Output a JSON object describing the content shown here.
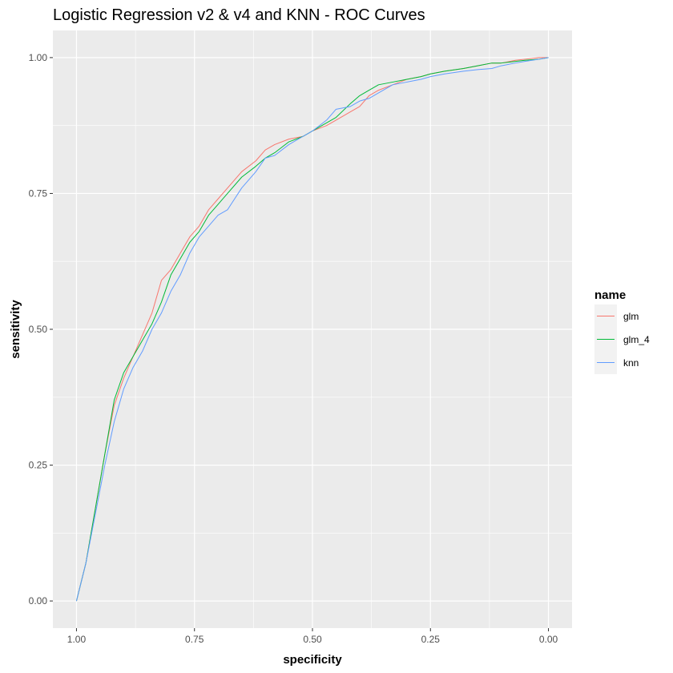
{
  "chart_data": {
    "type": "line",
    "title": "Logistic Regression v2 & v4 and KNN - ROC Curves",
    "xlabel": "specificity",
    "ylabel": "sensitivity",
    "x_reversed": true,
    "xlim": [
      1.05,
      -0.05
    ],
    "ylim": [
      -0.05,
      1.05
    ],
    "x_ticks": [
      1.0,
      0.75,
      0.5,
      0.25,
      0.0
    ],
    "x_tick_labels": [
      "1.00",
      "0.75",
      "0.50",
      "0.25",
      "0.00"
    ],
    "y_ticks": [
      0.0,
      0.25,
      0.5,
      0.75,
      1.0
    ],
    "y_tick_labels": [
      "0.00",
      "0.25",
      "0.50",
      "0.75",
      "1.00"
    ],
    "grid": true,
    "legend": {
      "title": "name",
      "position": "right"
    },
    "series": [
      {
        "name": "glm",
        "color": "#F8766D",
        "x": [
          1.0,
          0.98,
          0.96,
          0.94,
          0.92,
          0.9,
          0.88,
          0.86,
          0.84,
          0.82,
          0.8,
          0.78,
          0.76,
          0.74,
          0.72,
          0.7,
          0.68,
          0.65,
          0.62,
          0.6,
          0.58,
          0.55,
          0.52,
          0.5,
          0.47,
          0.45,
          0.42,
          0.4,
          0.38,
          0.36,
          0.33,
          0.3,
          0.27,
          0.25,
          0.22,
          0.18,
          0.15,
          0.12,
          0.1,
          0.07,
          0.05,
          0.02,
          0.0
        ],
        "y": [
          0.0,
          0.07,
          0.17,
          0.27,
          0.36,
          0.41,
          0.45,
          0.49,
          0.53,
          0.59,
          0.61,
          0.64,
          0.67,
          0.69,
          0.72,
          0.74,
          0.76,
          0.79,
          0.81,
          0.83,
          0.84,
          0.85,
          0.855,
          0.865,
          0.875,
          0.885,
          0.9,
          0.91,
          0.93,
          0.94,
          0.95,
          0.96,
          0.965,
          0.97,
          0.975,
          0.98,
          0.985,
          0.99,
          0.99,
          0.995,
          0.997,
          1.0,
          1.0
        ]
      },
      {
        "name": "glm_4",
        "color": "#00BA38",
        "x": [
          1.0,
          0.98,
          0.96,
          0.94,
          0.92,
          0.9,
          0.88,
          0.86,
          0.84,
          0.82,
          0.8,
          0.78,
          0.76,
          0.74,
          0.72,
          0.7,
          0.68,
          0.65,
          0.62,
          0.6,
          0.58,
          0.55,
          0.52,
          0.5,
          0.47,
          0.45,
          0.42,
          0.4,
          0.38,
          0.36,
          0.33,
          0.3,
          0.27,
          0.25,
          0.22,
          0.18,
          0.15,
          0.12,
          0.1,
          0.07,
          0.05,
          0.02,
          0.0
        ],
        "y": [
          0.0,
          0.07,
          0.17,
          0.27,
          0.37,
          0.42,
          0.45,
          0.48,
          0.51,
          0.55,
          0.6,
          0.63,
          0.66,
          0.68,
          0.71,
          0.73,
          0.75,
          0.78,
          0.8,
          0.815,
          0.825,
          0.845,
          0.855,
          0.865,
          0.88,
          0.89,
          0.915,
          0.93,
          0.94,
          0.95,
          0.955,
          0.96,
          0.965,
          0.97,
          0.975,
          0.98,
          0.985,
          0.99,
          0.99,
          0.993,
          0.995,
          0.997,
          1.0
        ]
      },
      {
        "name": "knn",
        "color": "#619CFF",
        "x": [
          1.0,
          0.98,
          0.96,
          0.94,
          0.92,
          0.9,
          0.88,
          0.86,
          0.84,
          0.82,
          0.8,
          0.78,
          0.76,
          0.74,
          0.72,
          0.7,
          0.68,
          0.65,
          0.62,
          0.6,
          0.58,
          0.55,
          0.52,
          0.5,
          0.47,
          0.45,
          0.42,
          0.4,
          0.38,
          0.36,
          0.33,
          0.3,
          0.27,
          0.25,
          0.22,
          0.18,
          0.15,
          0.12,
          0.1,
          0.07,
          0.05,
          0.02,
          0.0
        ],
        "y": [
          0.0,
          0.07,
          0.16,
          0.25,
          0.33,
          0.39,
          0.43,
          0.46,
          0.5,
          0.53,
          0.57,
          0.6,
          0.64,
          0.67,
          0.69,
          0.71,
          0.72,
          0.76,
          0.79,
          0.815,
          0.82,
          0.84,
          0.855,
          0.865,
          0.885,
          0.905,
          0.91,
          0.92,
          0.925,
          0.935,
          0.95,
          0.955,
          0.96,
          0.965,
          0.97,
          0.975,
          0.978,
          0.98,
          0.985,
          0.99,
          0.993,
          0.997,
          1.0
        ]
      }
    ]
  }
}
